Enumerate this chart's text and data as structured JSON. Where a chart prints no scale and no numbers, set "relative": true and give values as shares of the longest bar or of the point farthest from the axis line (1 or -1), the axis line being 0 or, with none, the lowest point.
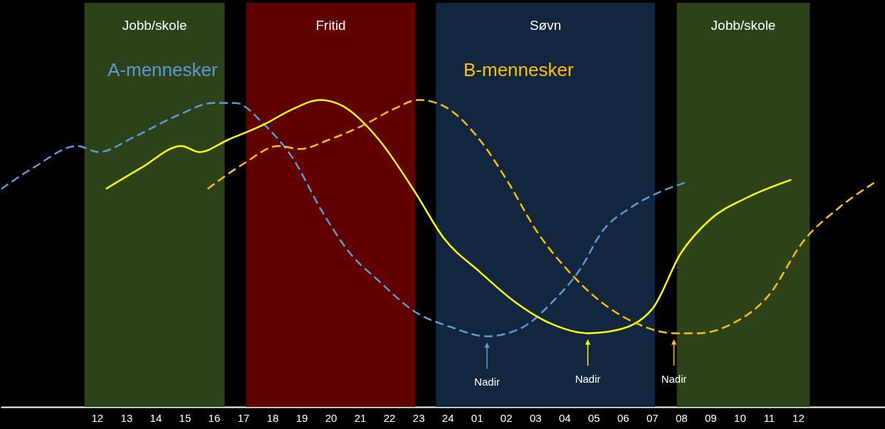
{
  "chart_data": {
    "type": "line",
    "relative": true,
    "xlim": [
      "--01-01T08:42",
      "--01-02T15:00"
    ],
    "xticks": [
      {
        "value": "--01-01T12:00",
        "label": "12"
      },
      {
        "value": "--01-01T13:00",
        "label": "13"
      },
      {
        "value": "--01-01T14:00",
        "label": "14"
      },
      {
        "value": "--01-01T15:00",
        "label": "15"
      },
      {
        "value": "--01-01T16:00",
        "label": "16"
      },
      {
        "value": "--01-01T17:00",
        "label": "17"
      },
      {
        "value": "--01-01T18:00",
        "label": "18"
      },
      {
        "value": "--01-01T19:00",
        "label": "19"
      },
      {
        "value": "--01-01T20:00",
        "label": "20"
      },
      {
        "value": "--01-01T21:00",
        "label": "21"
      },
      {
        "value": "--01-01T22:00",
        "label": "22"
      },
      {
        "value": "--01-01T23:00",
        "label": "23"
      },
      {
        "value": "--01-02T00:00",
        "label": "24"
      },
      {
        "value": "--01-02T01:00",
        "label": "01"
      },
      {
        "value": "--01-02T02:00",
        "label": "02"
      },
      {
        "value": "--01-02T03:00",
        "label": "03"
      },
      {
        "value": "--01-02T04:00",
        "label": "04"
      },
      {
        "value": "--01-02T05:00",
        "label": "05"
      },
      {
        "value": "--01-02T06:00",
        "label": "06"
      },
      {
        "value": "--01-02T07:00",
        "label": "07"
      },
      {
        "value": "--01-02T08:00",
        "label": "08"
      },
      {
        "value": "--01-02T09:00",
        "label": "09"
      },
      {
        "value": "--01-02T10:00",
        "label": "10"
      },
      {
        "value": "--01-02T11:00",
        "label": "11"
      },
      {
        "value": "--01-02T12:00",
        "label": "12"
      }
    ],
    "grid": false,
    "series": [
      {
        "name": "A-mennesker",
        "color": "#5b9bd5",
        "line_style": "dashed",
        "x": [
          "--01-01T08:43",
          "--01-01T09:50",
          "--01-01T11:19",
          "--01-01T12:03",
          "--01-01T13:17",
          "--01-01T14:46",
          "--01-01T15:59",
          "--01-01T16:44",
          "--01-01T17:43",
          "--01-01T18:42",
          "--01-01T19:41",
          "--01-01T20:40",
          "--01-01T21:39",
          "--01-01T22:53",
          "--01-02T00:07",
          "--01-02T01:21",
          "--01-02T02:35",
          "--01-02T03:34",
          "--01-02T04:33",
          "--01-02T05:17",
          "--01-02T06:17",
          "--01-02T07:16",
          "--01-02T08:07"
        ],
        "values": [
          0.71,
          0.78,
          0.85,
          0.83,
          0.88,
          0.95,
          0.99,
          0.99,
          0.92,
          0.81,
          0.64,
          0.5,
          0.41,
          0.31,
          0.26,
          0.23,
          0.26,
          0.34,
          0.45,
          0.57,
          0.65,
          0.7,
          0.73
        ]
      },
      {
        "color": "#ffff00",
        "line_style": "solid",
        "x": [
          "--01-01T12:18",
          "--01-01T13:32",
          "--01-01T14:53",
          "--01-01T15:30",
          "--01-01T16:29",
          "--01-01T17:43",
          "--01-01T18:42",
          "--01-01T19:38",
          "--01-01T20:25",
          "--01-01T21:39",
          "--01-01T22:53",
          "--01-01T23:52",
          "--01-02T01:06",
          "--01-02T02:20",
          "--01-02T03:34",
          "--01-02T04:48",
          "--01-02T05:47",
          "--01-02T07:01",
          "--01-02T07:59",
          "--01-02T08:59",
          "--01-02T10:13",
          "--01-02T11:46"
        ],
        "values": [
          0.71,
          0.78,
          0.85,
          0.83,
          0.87,
          0.92,
          0.97,
          1,
          0.98,
          0.87,
          0.7,
          0.55,
          0.44,
          0.34,
          0.27,
          0.24,
          0.25,
          0.32,
          0.5,
          0.61,
          0.68,
          0.74
        ]
      },
      {
        "name": "B-mennesker",
        "color": "#ffc000",
        "line_style": "dashed",
        "x": [
          "--01-01T15:47",
          "--01-01T16:59",
          "--01-01T18:13",
          "--01-01T18:57",
          "--01-01T19:56",
          "--01-01T21:10",
          "--01-01T22:09",
          "--01-01T23:01",
          "--01-01T23:52",
          "--01-02T01:06",
          "--01-02T02:05",
          "--01-02T03:04",
          "--01-02T04:04",
          "--01-02T05:17",
          "--01-02T06:31",
          "--01-02T07:45",
          "--01-02T08:37",
          "--01-02T09:43",
          "--01-02T10:58",
          "--01-02T12:11",
          "--01-02T13:25",
          "--01-02T14:36"
        ],
        "values": [
          0.71,
          0.79,
          0.85,
          0.84,
          0.87,
          0.92,
          0.97,
          1,
          0.98,
          0.87,
          0.73,
          0.57,
          0.45,
          0.34,
          0.27,
          0.24,
          0.24,
          0.27,
          0.36,
          0.54,
          0.65,
          0.73
        ]
      }
    ],
    "bands": [
      {
        "axis": "x",
        "from": "--01-01T11:34",
        "to": "--01-01T16:22",
        "label": "Jobb/skole",
        "color": "#2d4219"
      },
      {
        "axis": "x",
        "from": "--01-01T17:06",
        "to": "--01-01T22:54",
        "label": "Fritid",
        "color": "#600000"
      },
      {
        "axis": "x",
        "from": "--01-01T23:36",
        "to": "--01-02T07:06",
        "label": "Søvn",
        "color": "#12263f"
      },
      {
        "axis": "x",
        "from": "--01-02T07:51",
        "to": "--01-02T12:24",
        "label": "Jobb/skole",
        "color": "#2d4219"
      }
    ],
    "annotations": [
      "Nadir",
      "Nadir",
      "Nadir"
    ]
  }
}
